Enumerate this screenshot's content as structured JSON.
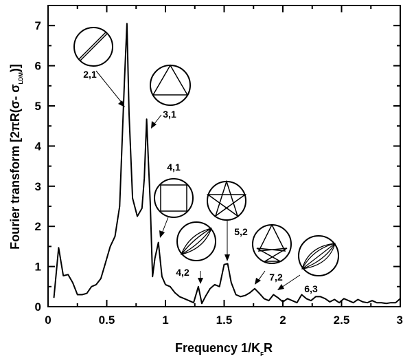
{
  "chart_data": {
    "type": "line",
    "xlabel_main": "Frequency  1/K",
    "xlabel_sub": "F",
    "xlabel_tail": "R",
    "ylabel_main": "Fourier  transform  [2πR(σ- σ",
    "ylabel_sub": "LDM",
    "ylabel_tail": ")]",
    "xlim": [
      0,
      3
    ],
    "ylim": [
      0,
      7.5
    ],
    "xticks": [
      {
        "value": 0,
        "label": "0"
      },
      {
        "value": 0.5,
        "label": "0.5"
      },
      {
        "value": 1,
        "label": "1"
      },
      {
        "value": 1.5,
        "label": "1.5"
      },
      {
        "value": 2,
        "label": "2"
      },
      {
        "value": 2.5,
        "label": "2.5"
      },
      {
        "value": 3,
        "label": "3"
      }
    ],
    "yticks": [
      {
        "value": 0,
        "label": "0"
      },
      {
        "value": 1,
        "label": "1"
      },
      {
        "value": 2,
        "label": "2"
      },
      {
        "value": 3,
        "label": "3"
      },
      {
        "value": 4,
        "label": "4"
      },
      {
        "value": 5,
        "label": "5"
      },
      {
        "value": 6,
        "label": "6"
      },
      {
        "value": 7,
        "label": "7"
      }
    ],
    "series": [
      {
        "x": [
          0.05,
          0.09,
          0.13,
          0.17,
          0.21,
          0.25,
          0.29,
          0.33,
          0.37,
          0.41,
          0.45,
          0.49,
          0.53,
          0.57,
          0.61,
          0.65,
          0.672,
          0.69,
          0.72,
          0.76,
          0.8,
          0.82,
          0.84,
          0.855,
          0.87,
          0.89,
          0.91,
          0.94,
          0.97,
          1.0,
          1.04,
          1.08,
          1.12,
          1.16,
          1.2,
          1.24,
          1.28,
          1.31,
          1.34,
          1.38,
          1.42,
          1.46,
          1.5,
          1.53,
          1.56,
          1.6,
          1.64,
          1.68,
          1.72,
          1.76,
          1.8,
          1.84,
          1.88,
          1.92,
          1.96,
          2.0,
          2.04,
          2.08,
          2.12,
          2.16,
          2.2,
          2.24,
          2.28,
          2.32,
          2.36,
          2.4,
          2.44,
          2.48,
          2.52,
          2.56,
          2.6,
          2.64,
          2.68,
          2.72,
          2.76,
          2.8,
          2.84,
          2.88,
          2.92,
          2.96,
          3.0
        ],
        "y": [
          0.22,
          1.47,
          0.77,
          0.8,
          0.6,
          0.3,
          0.3,
          0.33,
          0.5,
          0.55,
          0.7,
          1.1,
          1.5,
          1.75,
          2.5,
          5.6,
          7.05,
          4.8,
          2.7,
          2.25,
          2.45,
          3.2,
          4.67,
          3.6,
          2.6,
          0.75,
          1.2,
          1.6,
          0.75,
          0.55,
          0.5,
          0.35,
          0.25,
          0.2,
          0.15,
          0.1,
          0.5,
          0.08,
          0.25,
          0.45,
          0.55,
          0.5,
          1.05,
          1.07,
          0.6,
          0.3,
          0.25,
          0.28,
          0.35,
          0.45,
          0.33,
          0.2,
          0.15,
          0.3,
          0.22,
          0.12,
          0.2,
          0.15,
          0.1,
          0.3,
          0.2,
          0.15,
          0.25,
          0.25,
          0.2,
          0.12,
          0.18,
          0.1,
          0.2,
          0.15,
          0.1,
          0.18,
          0.12,
          0.1,
          0.15,
          0.1,
          0.1,
          0.08,
          0.1,
          0.1,
          0.2
        ]
      }
    ],
    "annotations": [
      {
        "label": "2,1",
        "shape": "diameter"
      },
      {
        "label": "3,1",
        "shape": "triangle"
      },
      {
        "label": "4,1",
        "shape": "square"
      },
      {
        "label": "5,2",
        "shape": "pentagram"
      },
      {
        "label": "4,2",
        "shape": "lens"
      },
      {
        "label": "7,2",
        "shape": "heptagram"
      },
      {
        "label": "6,3",
        "shape": "lens"
      }
    ]
  }
}
